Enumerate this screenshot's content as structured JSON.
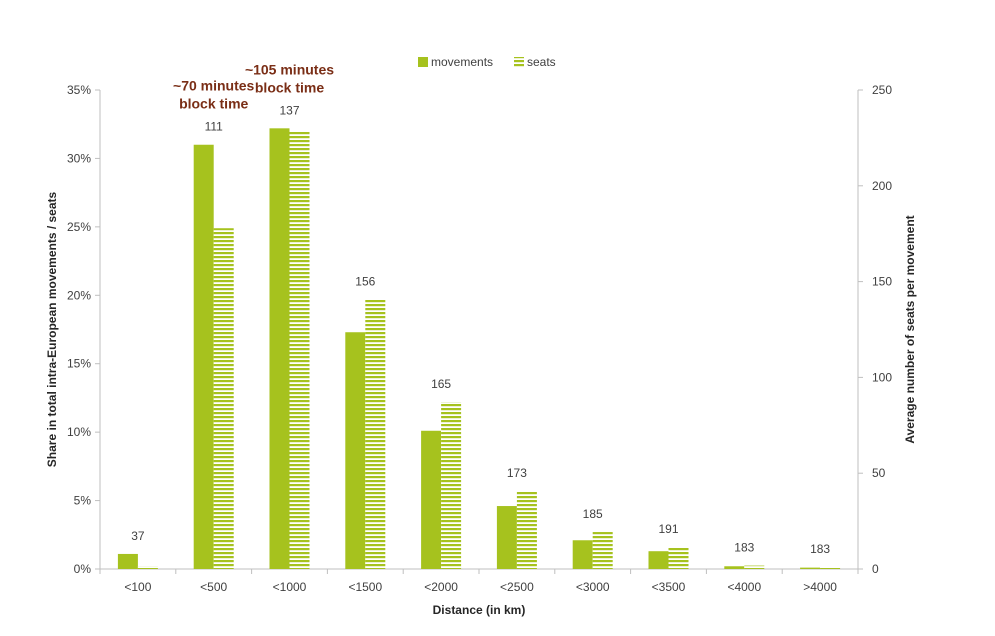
{
  "chart_data": {
    "type": "bar",
    "categories": [
      "<100",
      "<500",
      "<1000",
      "<1500",
      "<2000",
      "<2500",
      "<3000",
      "<3500",
      "<4000",
      ">4000"
    ],
    "series": [
      {
        "name": "movements",
        "axis": "left",
        "pattern": "solid",
        "values": [
          1.1,
          31.0,
          32.2,
          17.3,
          10.1,
          4.6,
          2.1,
          1.3,
          0.2,
          0.1
        ]
      },
      {
        "name": "seats",
        "axis": "left",
        "pattern": "horizontal-stripes",
        "values": [
          0.2,
          24.9,
          32.0,
          19.7,
          12.2,
          5.7,
          2.7,
          1.6,
          0.25,
          0.15
        ]
      }
    ],
    "bar_labels": [
      "37",
      "111",
      "137",
      "156",
      "165",
      "173",
      "185",
      "191",
      "183",
      "183"
    ],
    "bar_labels_meaning": "Average number of seats per movement",
    "xlabel": "Distance (in km)",
    "ylabel": "Share in total intra-European movements / seats",
    "y2label": "Average number of seats per movement",
    "ylim": [
      0,
      35
    ],
    "y_ticks": [
      "0%",
      "5%",
      "10%",
      "15%",
      "20%",
      "25%",
      "30%",
      "35%"
    ],
    "y2lim": [
      0,
      250
    ],
    "y2_ticks": [
      "0",
      "50",
      "100",
      "150",
      "200",
      "250"
    ],
    "annotations": [
      {
        "category": "<500",
        "lines": [
          "~70 minutes",
          "block time"
        ]
      },
      {
        "category": "<1000",
        "lines": [
          "~105 minutes",
          "block time"
        ]
      }
    ],
    "legend_position": "top-center",
    "grid": false,
    "colors": {
      "bar": "#a6c21e",
      "annotation": "#7a2e16",
      "axis": "#bfbfbf",
      "text": "#404040"
    }
  }
}
